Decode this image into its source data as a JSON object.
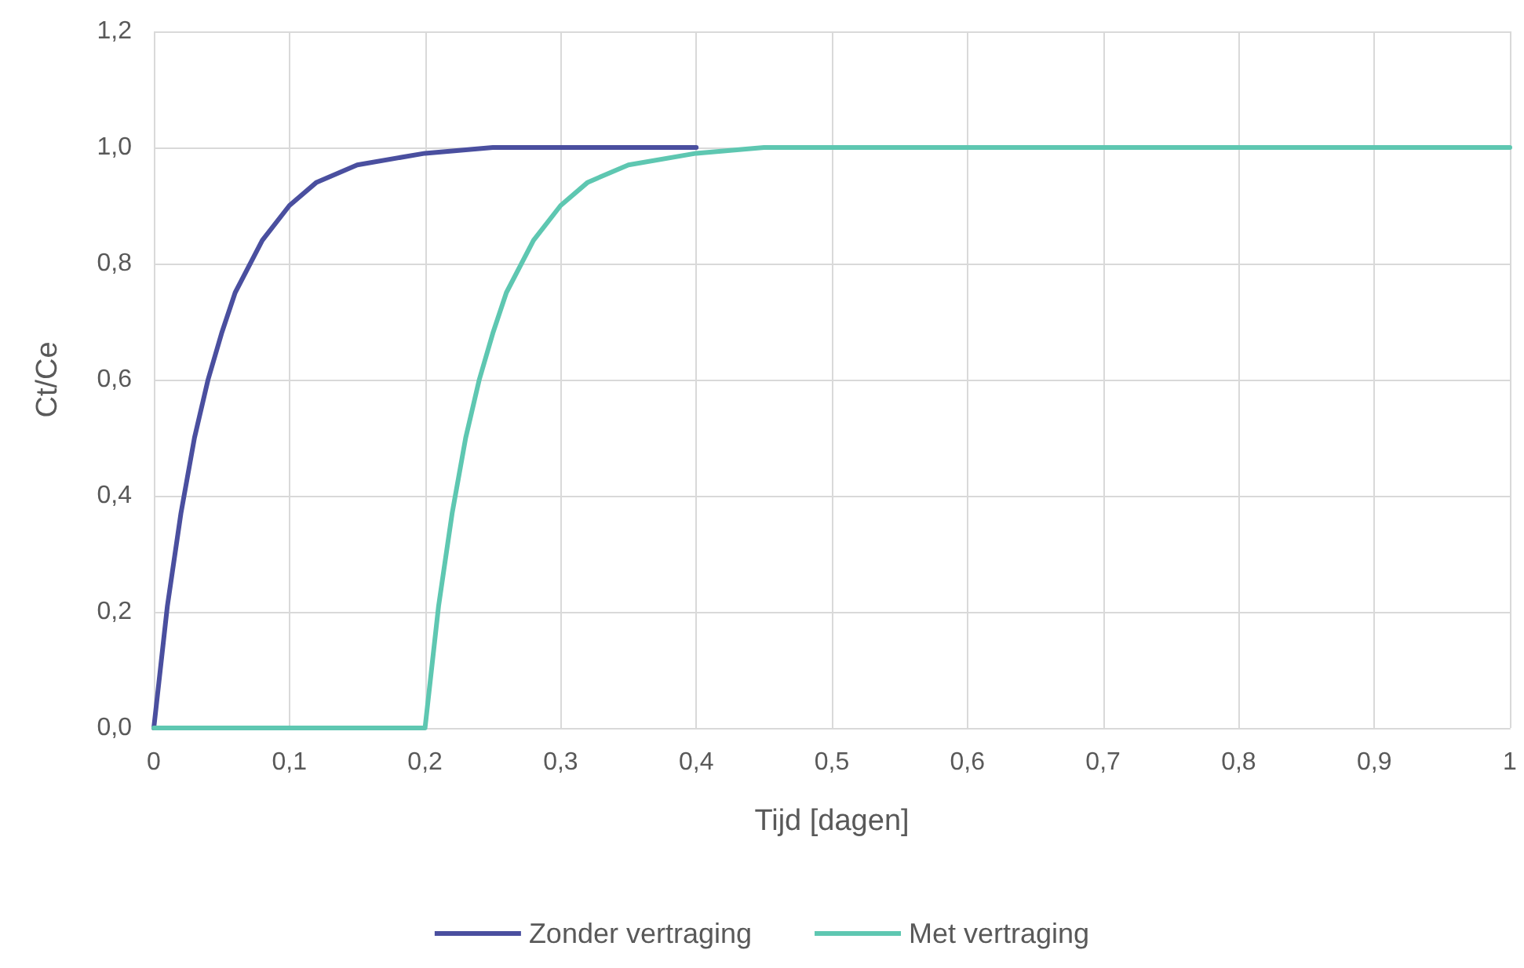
{
  "chart_data": {
    "type": "line",
    "xlabel": "Tijd [dagen]",
    "ylabel": "Ct/Ce",
    "xlim": [
      0,
      1
    ],
    "ylim": [
      0,
      1.2
    ],
    "xticks": [
      0,
      {
        "value": 0.1,
        "label": "0,1"
      },
      {
        "value": 0.2,
        "label": "0,2"
      },
      {
        "value": 0.3,
        "label": "0,3"
      },
      {
        "value": 0.4,
        "label": "0,4"
      },
      {
        "value": 0.5,
        "label": "0,5"
      },
      {
        "value": 0.6,
        "label": "0,6"
      },
      {
        "value": 0.7,
        "label": "0,7"
      },
      {
        "value": 0.8,
        "label": "0,8"
      },
      {
        "value": 0.9,
        "label": "0,9"
      },
      1
    ],
    "yticks": [
      {
        "value": 0,
        "label": "0,0"
      },
      {
        "value": 0.2,
        "label": "0,2"
      },
      {
        "value": 0.4,
        "label": "0,4"
      },
      {
        "value": 0.6,
        "label": "0,6"
      },
      {
        "value": 0.8,
        "label": "0,8"
      },
      {
        "value": 1,
        "label": "1,0"
      },
      {
        "value": 1.2,
        "label": "1,2"
      }
    ],
    "grid": true,
    "legend": "bottom",
    "marker": "none",
    "line_style": "solid",
    "series": [
      {
        "name": "Zonder vertraging",
        "color": "#4a4f9f",
        "x": [
          0,
          0.01,
          0.02,
          0.03,
          0.04,
          0.05,
          0.06,
          0.08,
          0.1,
          0.12,
          0.15,
          0.2,
          0.25,
          0.3,
          0.4
        ],
        "values": [
          0,
          0.21,
          0.37,
          0.5,
          0.6,
          0.68,
          0.75,
          0.84,
          0.9,
          0.94,
          0.97,
          0.99,
          1,
          1,
          1
        ]
      },
      {
        "name": "Met vertraging",
        "color": "#5ec7b1",
        "x": [
          0,
          0.1,
          0.19,
          0.2,
          0.21,
          0.22,
          0.23,
          0.24,
          0.25,
          0.26,
          0.28,
          0.3,
          0.32,
          0.35,
          0.4,
          0.45,
          0.5,
          0.6,
          0.7,
          0.8,
          0.9,
          1
        ],
        "values": [
          0,
          0,
          0,
          0,
          0.21,
          0.37,
          0.5,
          0.6,
          0.68,
          0.75,
          0.84,
          0.9,
          0.94,
          0.97,
          0.99,
          1,
          1,
          1,
          1,
          1,
          1,
          1
        ]
      }
    ]
  }
}
